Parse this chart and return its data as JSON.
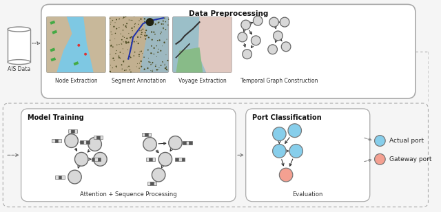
{
  "title_top": "Data Preprocessing",
  "title_model": "Model Training",
  "title_port": "Port Classification",
  "label_ais": "AIS Data",
  "labels_top": [
    "Node Extraction",
    "Segment Annotation",
    "Voyage Extraction",
    "Temporal Graph Construction"
  ],
  "label_bottom1": "Attention + Sequence Processing",
  "label_bottom2": "Evaluation",
  "legend_actual": "Actual port",
  "legend_gateway": "Gateway port",
  "color_actual": "#87CEEB",
  "color_gateway": "#F4A091",
  "bg_color": "#F5F5F5",
  "node_gray": "#D0D0D0",
  "node_outline": "#777777",
  "edge_color": "#444444"
}
